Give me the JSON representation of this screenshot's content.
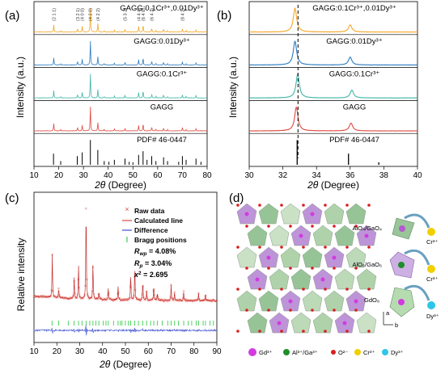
{
  "panels": {
    "a": {
      "label": "(a)",
      "ylabel": "Intensity (a.u.)",
      "xlabel_symbol": "2θ",
      "xlabel_unit": " (Degree)",
      "ref_label": "PDF# 46-0447",
      "traces": [
        {
          "name": "GAGG:0.1Cr³⁺,0.01Dy³⁺",
          "color": "#f5a623"
        },
        {
          "name": "GAGG:0.01Dy³⁺",
          "color": "#2a7bbf"
        },
        {
          "name": "GAGG:0.1Cr³⁺",
          "color": "#3fb4a6"
        },
        {
          "name": "GAGG",
          "color": "#e0483e"
        }
      ],
      "hkl": [
        "(2 1 1)",
        "(3 2 1)",
        "(4 0 0)",
        "(4 2 0)",
        "(4 2 2)",
        "(5 3 2)",
        "(4 4 4)",
        "(6 4 0)",
        "(6 4 2)",
        "(8 4 2)"
      ]
    },
    "b": {
      "label": "(b)",
      "ylabel": "Intensity (a.u.)",
      "xlabel_symbol": "2θ",
      "xlabel_unit": " (Degree)",
      "ref_label": "PDF# 46-0447",
      "traces": [
        {
          "name": "GAGG:0.1Cr³⁺,0.01Dy³⁺",
          "color": "#f5a623"
        },
        {
          "name": "GAGG:0.01Dy³⁺",
          "color": "#2a7bbf"
        },
        {
          "name": "GAGG:0.1Cr³⁺",
          "color": "#3fb4a6"
        },
        {
          "name": "GAGG",
          "color": "#e0483e"
        }
      ]
    },
    "c": {
      "label": "(c)",
      "ylabel": "Relative intensity",
      "xlabel_symbol": "2θ",
      "xlabel_unit": " (Degree)",
      "legend": [
        {
          "name": "Raw data",
          "color": "#e0483e"
        },
        {
          "name": "Calculated line",
          "color": "#e0483e"
        },
        {
          "name": "Difference",
          "color": "#3b4fd1"
        },
        {
          "name": "Bragg positions",
          "color": "#3ccf4e"
        }
      ],
      "stats": [
        "R",
        "wp",
        " = 4.08%",
        "R",
        "p",
        " = 3.04%",
        "x",
        "2",
        " = 2.695"
      ]
    },
    "d": {
      "label": "(d)",
      "sites": [
        "AlO₄/GaO₄",
        "AlO₆/GaO₆",
        "GdO₈"
      ],
      "dopants": [
        "Cr³⁺",
        "Cr³⁺",
        "Dy³⁺"
      ],
      "axes": [
        "a",
        "b"
      ],
      "legend": [
        {
          "name": "Gd³⁺",
          "color": "#d23be0"
        },
        {
          "name": "Al³⁺/Ga³⁺",
          "color": "#1f8f2a"
        },
        {
          "name": "O²⁻",
          "color": "#d62020"
        },
        {
          "name": "Cr³⁺",
          "color": "#f0d000"
        },
        {
          "name": "Dy³⁺",
          "color": "#2ec6e6"
        }
      ]
    }
  },
  "chart_data": [
    {
      "type": "line",
      "panel": "a",
      "xlabel": "2θ (Degree)",
      "ylabel": "Intensity (a.u.)",
      "xlim": [
        10,
        80
      ],
      "xticks": [
        10,
        20,
        30,
        40,
        50,
        60,
        70,
        80
      ],
      "peaks": [
        {
          "x": 18.0,
          "h": 0.28
        },
        {
          "x": 20.8,
          "h": 0.05
        },
        {
          "x": 27.6,
          "h": 0.14
        },
        {
          "x": 29.5,
          "h": 0.22
        },
        {
          "x": 32.8,
          "h": 1.0
        },
        {
          "x": 35.8,
          "h": 0.35
        },
        {
          "x": 38.4,
          "h": 0.06
        },
        {
          "x": 42.5,
          "h": 0.07
        },
        {
          "x": 46.8,
          "h": 0.1
        },
        {
          "x": 52.3,
          "h": 0.22
        },
        {
          "x": 54.1,
          "h": 0.3
        },
        {
          "x": 57.6,
          "h": 0.15
        },
        {
          "x": 59.3,
          "h": 0.06
        },
        {
          "x": 62.4,
          "h": 0.12
        },
        {
          "x": 64.0,
          "h": 0.05
        },
        {
          "x": 70.0,
          "h": 0.12
        },
        {
          "x": 71.5,
          "h": 0.05
        },
        {
          "x": 75.5,
          "h": 0.08
        }
      ],
      "reference_peaks": [
        {
          "x": 17.9,
          "h": 0.45
        },
        {
          "x": 20.8,
          "h": 0.15
        },
        {
          "x": 27.5,
          "h": 0.35
        },
        {
          "x": 29.5,
          "h": 0.5
        },
        {
          "x": 32.8,
          "h": 1.0
        },
        {
          "x": 35.8,
          "h": 0.6
        },
        {
          "x": 38.4,
          "h": 0.15
        },
        {
          "x": 40.3,
          "h": 0.12
        },
        {
          "x": 42.5,
          "h": 0.2
        },
        {
          "x": 46.8,
          "h": 0.25
        },
        {
          "x": 48.5,
          "h": 0.12
        },
        {
          "x": 50.0,
          "h": 0.1
        },
        {
          "x": 52.3,
          "h": 0.4
        },
        {
          "x": 54.1,
          "h": 0.55
        },
        {
          "x": 55.7,
          "h": 0.2
        },
        {
          "x": 57.6,
          "h": 0.35
        },
        {
          "x": 59.3,
          "h": 0.15
        },
        {
          "x": 62.4,
          "h": 0.3
        },
        {
          "x": 64.0,
          "h": 0.15
        },
        {
          "x": 68.5,
          "h": 0.12
        },
        {
          "x": 70.0,
          "h": 0.35
        },
        {
          "x": 71.5,
          "h": 0.2
        },
        {
          "x": 75.5,
          "h": 0.25
        },
        {
          "x": 77.5,
          "h": 0.12
        }
      ]
    },
    {
      "type": "line",
      "panel": "b",
      "xlabel": "2θ (Degree)",
      "ylabel": "Intensity (a.u.)",
      "xlim": [
        30,
        40
      ],
      "xticks": [
        30,
        32,
        34,
        36,
        38,
        40
      ],
      "reference_line_x": 32.9,
      "series": [
        {
          "name": "GAGG:0.1Cr³⁺,0.01Dy³⁺",
          "peaks": [
            {
              "x": 32.72,
              "h": 1.0
            },
            {
              "x": 36.0,
              "h": 0.3
            }
          ]
        },
        {
          "name": "GAGG:0.01Dy³⁺",
          "peaks": [
            {
              "x": 32.72,
              "h": 1.0
            },
            {
              "x": 36.0,
              "h": 0.33
            }
          ]
        },
        {
          "name": "GAGG:0.1Cr³⁺",
          "peaks": [
            {
              "x": 32.88,
              "h": 1.0
            },
            {
              "x": 36.1,
              "h": 0.33
            }
          ]
        },
        {
          "name": "GAGG",
          "peaks": [
            {
              "x": 32.8,
              "h": 1.0
            },
            {
              "x": 36.05,
              "h": 0.33
            }
          ]
        }
      ],
      "reference_peaks": [
        {
          "x": 32.85,
          "h": 1.0
        },
        {
          "x": 35.9,
          "h": 0.45
        },
        {
          "x": 37.7,
          "h": 0.1
        }
      ]
    },
    {
      "type": "line",
      "panel": "c",
      "xlabel": "2θ (Degree)",
      "ylabel": "Relative intensity",
      "xlim": [
        10,
        90
      ],
      "xticks": [
        10,
        20,
        30,
        40,
        50,
        60,
        70,
        80,
        90
      ],
      "peaks": [
        {
          "x": 18.0,
          "h": 0.45
        },
        {
          "x": 20.8,
          "h": 0.1
        },
        {
          "x": 27.6,
          "h": 0.22
        },
        {
          "x": 29.5,
          "h": 0.35
        },
        {
          "x": 32.8,
          "h": 1.0
        },
        {
          "x": 35.8,
          "h": 0.38
        },
        {
          "x": 38.4,
          "h": 0.08
        },
        {
          "x": 42.5,
          "h": 0.12
        },
        {
          "x": 46.8,
          "h": 0.14
        },
        {
          "x": 52.3,
          "h": 0.28
        },
        {
          "x": 54.1,
          "h": 0.36
        },
        {
          "x": 57.6,
          "h": 0.2
        },
        {
          "x": 59.3,
          "h": 0.1
        },
        {
          "x": 62.4,
          "h": 0.16
        },
        {
          "x": 64.0,
          "h": 0.08
        },
        {
          "x": 70.0,
          "h": 0.16
        },
        {
          "x": 71.5,
          "h": 0.09
        },
        {
          "x": 75.5,
          "h": 0.1
        },
        {
          "x": 82.0,
          "h": 0.08
        },
        {
          "x": 85.0,
          "h": 0.07
        }
      ],
      "bragg_positions": [
        17.9,
        20.8,
        25.0,
        27.5,
        29.5,
        31.0,
        32.8,
        34.4,
        35.8,
        37.1,
        38.4,
        40.3,
        41.5,
        42.5,
        44.8,
        46.8,
        47.8,
        48.5,
        50.0,
        51.3,
        52.3,
        54.1,
        55.7,
        57.6,
        59.3,
        61.0,
        62.4,
        64.0,
        66.1,
        68.5,
        70.0,
        71.5,
        73.2,
        75.5,
        77.5,
        79.0,
        81.0,
        82.0,
        84.0,
        85.0,
        87.0,
        88.5
      ]
    }
  ]
}
